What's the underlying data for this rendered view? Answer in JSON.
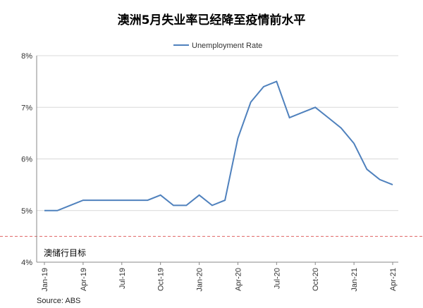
{
  "chart_data": {
    "type": "line",
    "title": "澳洲5月失业率已经降至疫情前水平",
    "legend": "Unemployment Rate",
    "legend_position": "top-center",
    "source": "Source: ABS",
    "annotation": "澳储行目标",
    "target_line": 4.5,
    "ylim": [
      4,
      8
    ],
    "yticks": [
      "4%",
      "5%",
      "6%",
      "7%",
      "8%"
    ],
    "ytick_values": [
      4,
      5,
      6,
      7,
      8
    ],
    "xtick_labels": [
      "Jan-19",
      "Apr-19",
      "Jul-19",
      "Oct-19",
      "Jan-20",
      "Apr-20",
      "Jul-20",
      "Oct-20",
      "Jan-21",
      "Apr-21"
    ],
    "grid": true,
    "series": [
      {
        "name": "Unemployment Rate",
        "color": "#4f81bd",
        "x": [
          "Jan-19",
          "Feb-19",
          "Mar-19",
          "Apr-19",
          "May-19",
          "Jun-19",
          "Jul-19",
          "Aug-19",
          "Sep-19",
          "Oct-19",
          "Nov-19",
          "Dec-19",
          "Jan-20",
          "Feb-20",
          "Mar-20",
          "Apr-20",
          "May-20",
          "Jun-20",
          "Jul-20",
          "Aug-20",
          "Sep-20",
          "Oct-20",
          "Nov-20",
          "Dec-20",
          "Jan-21",
          "Feb-21",
          "Mar-21",
          "Apr-21"
        ],
        "values": [
          5.0,
          5.0,
          5.1,
          5.2,
          5.2,
          5.2,
          5.2,
          5.2,
          5.2,
          5.3,
          5.1,
          5.1,
          5.3,
          5.1,
          5.2,
          6.4,
          7.1,
          7.4,
          7.5,
          6.8,
          6.9,
          7.0,
          6.8,
          6.6,
          6.3,
          5.8,
          5.6,
          5.5
        ]
      }
    ]
  }
}
